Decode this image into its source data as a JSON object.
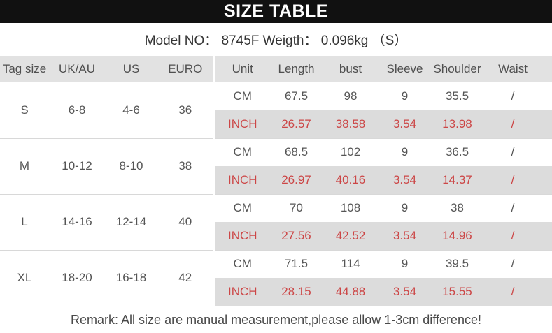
{
  "title": "SIZE TABLE",
  "model_line": "Model NO： 8745F Weigth： 0.096kg （S）",
  "remark": "Remark: All size are manual measurement,please allow 1-3cm difference!",
  "colors": {
    "banner_bg": "#111111",
    "banner_text": "#ffffff",
    "header_bg": "#e2e2e2",
    "inch_row_bg": "#dcdcdc",
    "body_text": "#555555",
    "inch_text": "#cc4646",
    "line": "#d8d8d8"
  },
  "table": {
    "headers": [
      "Tag size",
      "UK/AU",
      "US",
      "EURO",
      "Unit",
      "Length",
      "bust",
      "Sleeve",
      "Shoulder",
      "Waist"
    ],
    "value_keys": [
      "length",
      "bust",
      "sleeve",
      "shoulder",
      "waist"
    ],
    "sizes": [
      {
        "tag": "S",
        "uk_au": "6-8",
        "us": "4-6",
        "euro": "36",
        "cm": {
          "unit": "CM",
          "length": "67.5",
          "bust": "98",
          "sleeve": "9",
          "shoulder": "35.5",
          "waist": "/"
        },
        "inch": {
          "unit": "INCH",
          "length": "26.57",
          "bust": "38.58",
          "sleeve": "3.54",
          "shoulder": "13.98",
          "waist": "/"
        }
      },
      {
        "tag": "M",
        "uk_au": "10-12",
        "us": "8-10",
        "euro": "38",
        "cm": {
          "unit": "CM",
          "length": "68.5",
          "bust": "102",
          "sleeve": "9",
          "shoulder": "36.5",
          "waist": "/"
        },
        "inch": {
          "unit": "INCH",
          "length": "26.97",
          "bust": "40.16",
          "sleeve": "3.54",
          "shoulder": "14.37",
          "waist": "/"
        }
      },
      {
        "tag": "L",
        "uk_au": "14-16",
        "us": "12-14",
        "euro": "40",
        "cm": {
          "unit": "CM",
          "length": "70",
          "bust": "108",
          "sleeve": "9",
          "shoulder": "38",
          "waist": "/"
        },
        "inch": {
          "unit": "INCH",
          "length": "27.56",
          "bust": "42.52",
          "sleeve": "3.54",
          "shoulder": "14.96",
          "waist": "/"
        }
      },
      {
        "tag": "XL",
        "uk_au": "18-20",
        "us": "16-18",
        "euro": "42",
        "cm": {
          "unit": "CM",
          "length": "71.5",
          "bust": "114",
          "sleeve": "9",
          "shoulder": "39.5",
          "waist": "/"
        },
        "inch": {
          "unit": "INCH",
          "length": "28.15",
          "bust": "44.88",
          "sleeve": "3.54",
          "shoulder": "15.55",
          "waist": "/"
        }
      }
    ]
  }
}
